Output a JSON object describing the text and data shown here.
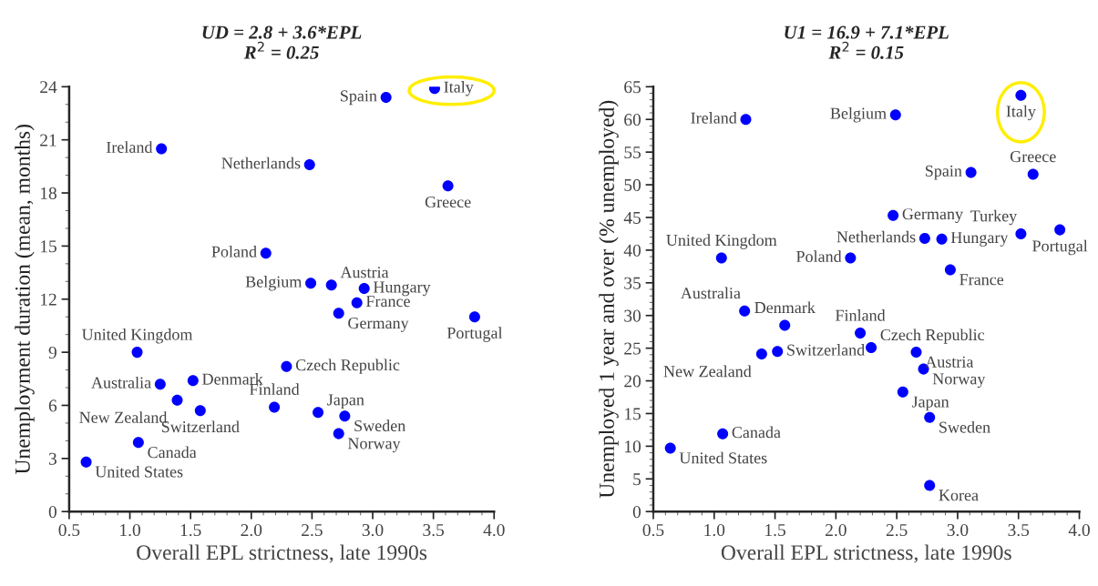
{
  "chart_data": [
    {
      "type": "scatter",
      "title": "UD = 2.8 + 3.6*EPL",
      "subtitle": "R$^{2}$ = 0.25",
      "xlabel": "Overall EPL strictness, late 1990s",
      "ylabel": "Unemployment duration (mean, months)",
      "xlim": [
        0.5,
        4.0
      ],
      "xticks": [
        {
          "value": 0.5,
          "label": "0.5"
        },
        {
          "value": 1.0,
          "label": "1.0"
        },
        1.5,
        {
          "value": 2.0,
          "label": "2.0"
        },
        2.5,
        {
          "value": 3.0,
          "label": "3.0"
        },
        3.5,
        {
          "value": 4.0,
          "label": "4.0"
        }
      ],
      "ylim": [
        0,
        24
      ],
      "yticks": [
        0,
        3,
        6,
        9,
        12,
        15,
        18,
        21,
        24
      ],
      "grid": false,
      "legend": false,
      "marker": "circle",
      "series": [
        {
          "color": "#0000ff",
          "x": [
            3.51,
            3.11,
            1.26,
            2.48,
            3.62,
            2.12,
            2.49,
            2.66,
            2.93,
            2.87,
            2.72,
            3.84,
            1.06,
            2.29,
            1.52,
            1.25,
            1.39,
            1.58,
            2.19,
            2.55,
            2.77,
            2.72,
            1.07,
            0.64
          ],
          "values": [
            23.9,
            23.4,
            20.5,
            19.6,
            18.4,
            14.6,
            12.9,
            12.8,
            12.6,
            11.8,
            11.2,
            11.0,
            9.0,
            8.2,
            7.4,
            7.2,
            6.3,
            5.7,
            5.9,
            5.6,
            5.4,
            4.4,
            3.9,
            2.8
          ]
        }
      ],
      "annotations": [
        {
          "text": "Italy",
          "x": 3.51,
          "y": 23.9
        },
        {
          "text": "Spain",
          "x": 3.11,
          "y": 23.4
        },
        {
          "text": "Ireland",
          "x": 1.26,
          "y": 20.5
        },
        {
          "text": "Netherlands",
          "x": 2.48,
          "y": 19.6
        },
        {
          "text": "Greece",
          "x": 3.62,
          "y": 18.4
        },
        {
          "text": "Poland",
          "x": 2.12,
          "y": 14.6
        },
        {
          "text": "Belgium",
          "x": 2.49,
          "y": 12.9
        },
        {
          "text": "Austria",
          "x": 2.66,
          "y": 12.8
        },
        {
          "text": "Hungary",
          "x": 2.93,
          "y": 12.6
        },
        {
          "text": "France",
          "x": 2.87,
          "y": 11.8
        },
        {
          "text": "Germany",
          "x": 2.72,
          "y": 11.2
        },
        {
          "text": "Portugal",
          "x": 3.84,
          "y": 11.0
        },
        {
          "text": "United Kingdom",
          "x": 1.06,
          "y": 9.0
        },
        {
          "text": "Czech Republic",
          "x": 2.29,
          "y": 8.2
        },
        {
          "text": "Denmark",
          "x": 1.52,
          "y": 7.4
        },
        {
          "text": "Australia",
          "x": 1.25,
          "y": 7.2
        },
        {
          "text": "New Zealand",
          "x": 1.39,
          "y": 6.3
        },
        {
          "text": "Switzerland",
          "x": 1.58,
          "y": 5.7
        },
        {
          "text": "Finland",
          "x": 2.19,
          "y": 5.9
        },
        {
          "text": "Japan",
          "x": 2.55,
          "y": 5.6
        },
        {
          "text": "Sweden",
          "x": 2.77,
          "y": 5.4
        },
        {
          "text": "Norway",
          "x": 2.72,
          "y": 4.4
        },
        {
          "text": "Canada",
          "x": 1.07,
          "y": 3.9
        },
        {
          "text": "United States",
          "x": 0.64,
          "y": 2.8
        }
      ]
    },
    {
      "type": "scatter",
      "title": "U1 = 16.9 + 7.1*EPL",
      "subtitle": "R$^{2}$ = 0.15",
      "xlabel": "Overall EPL strictness, late 1990s",
      "ylabel": "Unemployed 1 year and over (% unemployed)",
      "xlim": [
        0.5,
        4.0
      ],
      "xticks": [
        {
          "value": 0.5,
          "label": "0.5"
        },
        {
          "value": 1.0,
          "label": "1.0"
        },
        1.5,
        {
          "value": 2.0,
          "label": "2.0"
        },
        2.5,
        {
          "value": 3.0,
          "label": "3.0"
        },
        3.5,
        {
          "value": 4.0,
          "label": "4.0"
        }
      ],
      "ylim": [
        0,
        65
      ],
      "yticks": [
        0,
        5,
        10,
        15,
        20,
        25,
        30,
        35,
        40,
        45,
        50,
        55,
        60,
        65
      ],
      "grid": false,
      "legend": false,
      "marker": "circle",
      "series": [
        {
          "color": "#0000ff",
          "x": [
            3.52,
            1.26,
            2.49,
            3.11,
            3.62,
            2.47,
            2.73,
            2.87,
            3.52,
            3.84,
            1.06,
            2.12,
            2.94,
            1.25,
            1.58,
            2.2,
            2.29,
            2.66,
            1.39,
            1.52,
            2.72,
            2.55,
            2.77,
            1.07,
            0.64,
            2.77
          ],
          "values": [
            63.7,
            60.0,
            60.7,
            51.9,
            51.6,
            45.3,
            41.8,
            41.7,
            42.5,
            43.1,
            38.8,
            38.8,
            37.0,
            30.7,
            28.5,
            27.3,
            25.1,
            24.4,
            24.1,
            24.5,
            21.8,
            18.3,
            14.4,
            11.9,
            9.7,
            4.0
          ]
        }
      ],
      "annotations": [
        {
          "text": "Italy",
          "x": 3.52,
          "y": 63.7
        },
        {
          "text": "Ireland",
          "x": 1.26,
          "y": 60.0
        },
        {
          "text": "Belgium",
          "x": 2.49,
          "y": 60.7
        },
        {
          "text": "Spain",
          "x": 3.11,
          "y": 51.9
        },
        {
          "text": "Greece",
          "x": 3.62,
          "y": 51.6
        },
        {
          "text": "Germany",
          "x": 2.47,
          "y": 45.3
        },
        {
          "text": "Netherlands",
          "x": 2.73,
          "y": 41.8
        },
        {
          "text": "Hungary",
          "x": 2.87,
          "y": 41.7
        },
        {
          "text": "Turkey",
          "x": 3.52,
          "y": 42.5
        },
        {
          "text": "Portugal",
          "x": 3.84,
          "y": 43.1
        },
        {
          "text": "United Kingdom",
          "x": 1.06,
          "y": 38.8
        },
        {
          "text": "Poland",
          "x": 2.12,
          "y": 38.8
        },
        {
          "text": "France",
          "x": 2.94,
          "y": 37.0
        },
        {
          "text": "Australia",
          "x": 1.25,
          "y": 30.7
        },
        {
          "text": "Denmark",
          "x": 1.58,
          "y": 28.5
        },
        {
          "text": "Finland",
          "x": 2.2,
          "y": 27.3
        },
        {
          "text": "Czech Republic",
          "x": 2.29,
          "y": 25.1
        },
        {
          "text": "Austria",
          "x": 2.66,
          "y": 24.4
        },
        {
          "text": "New Zealand",
          "x": 1.39,
          "y": 24.1
        },
        {
          "text": "Switzerland",
          "x": 1.52,
          "y": 24.5
        },
        {
          "text": "Norway",
          "x": 2.72,
          "y": 21.8
        },
        {
          "text": "Japan",
          "x": 2.55,
          "y": 18.3
        },
        {
          "text": "Sweden",
          "x": 2.77,
          "y": 14.4
        },
        {
          "text": "Canada",
          "x": 1.07,
          "y": 11.9
        },
        {
          "text": "United States",
          "x": 0.64,
          "y": 9.7
        },
        {
          "text": "Korea",
          "x": 2.77,
          "y": 4.0
        }
      ]
    }
  ]
}
